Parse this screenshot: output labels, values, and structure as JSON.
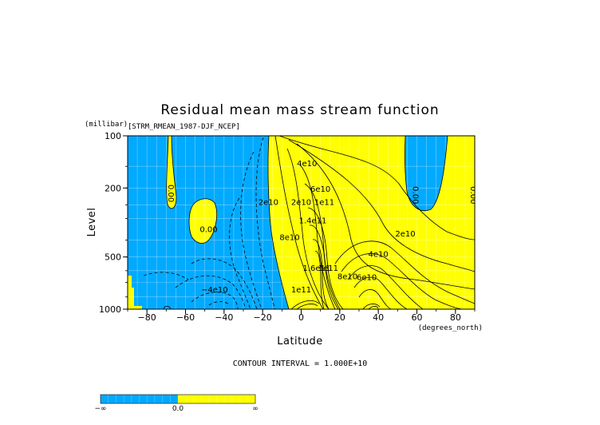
{
  "chart_data": {
    "type": "contour",
    "title": "Residual mean mass stream function",
    "subtitle": "[STRM_RMEAN_1987-DJF_NCEP]",
    "xlabel": "Latitude",
    "x_units": "(degrees_north)",
    "ylabel": "Level",
    "y_units": "(millibar)",
    "xlim": [
      -90,
      90
    ],
    "ylim": [
      1000,
      100
    ],
    "y_scale": "log",
    "x_ticks": [
      -80,
      -60,
      -40,
      -20,
      0,
      20,
      40,
      60,
      80
    ],
    "x_tick_labels": [
      "−80",
      "−60",
      "−40",
      "−20",
      "0",
      "20",
      "40",
      "60",
      "80"
    ],
    "y_ticks": [
      100,
      200,
      500,
      1000
    ],
    "grid": true,
    "contour_interval_label": "CONTOUR INTERVAL = 1.000E+10",
    "colors": {
      "negative": "#00aaff",
      "positive": "#ffff00",
      "missing": "#ffffff"
    },
    "contour_labels": [
      {
        "text": "0.00",
        "lat": -69,
        "p": 215
      },
      {
        "text": "0.00",
        "lat": -48,
        "p": 360
      },
      {
        "text": "0.00",
        "lat": 58,
        "p": 220
      },
      {
        "text": "0.00",
        "lat": 88,
        "p": 220
      },
      {
        "text": "4e10",
        "lat": 3,
        "p": 150
      },
      {
        "text": "6e10",
        "lat": 10,
        "p": 210
      },
      {
        "text": "2e10",
        "lat": -17,
        "p": 250
      },
      {
        "text": "2e10",
        "lat": 0,
        "p": 250
      },
      {
        "text": "1.4e11",
        "lat": 6,
        "p": 320
      },
      {
        "text": "1e11",
        "lat": 12,
        "p": 250
      },
      {
        "text": "8e10",
        "lat": -6,
        "p": 400
      },
      {
        "text": "1.6e11",
        "lat": 8,
        "p": 600
      },
      {
        "text": "1e11",
        "lat": 14,
        "p": 600
      },
      {
        "text": "8e10",
        "lat": 24,
        "p": 670
      },
      {
        "text": "6e10",
        "lat": 34,
        "p": 680
      },
      {
        "text": "4e10",
        "lat": 40,
        "p": 500
      },
      {
        "text": "2e10",
        "lat": 54,
        "p": 380
      },
      {
        "text": "1e11",
        "lat": 0,
        "p": 800
      },
      {
        "text": "−4e10",
        "lat": -45,
        "p": 800
      }
    ],
    "extrema": [
      {
        "type": "max",
        "value": 160000000000.0,
        "lat": 8,
        "p": 500
      },
      {
        "type": "min",
        "value": -40000000000.0,
        "lat": -40,
        "p": 800
      }
    ],
    "colorbar": {
      "labels": [
        "−∞",
        "0.0",
        "∞"
      ]
    }
  }
}
